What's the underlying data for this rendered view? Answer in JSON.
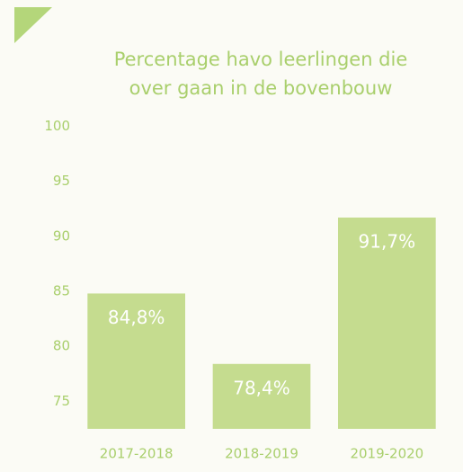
{
  "chart_data": {
    "type": "bar",
    "title": "Percentage havo leerlingen die over gaan in de bovenbouw",
    "categories": [
      "2017-2018",
      "2018-2019",
      "2019-2020"
    ],
    "values": [
      84.8,
      78.4,
      91.7
    ],
    "value_labels": [
      "84,8%",
      "78,4%",
      "91,7%"
    ],
    "color": "#c5dc8f",
    "ylim": [
      72.5,
      100
    ],
    "yticks": [
      75,
      80,
      85,
      90,
      95,
      100
    ],
    "grid": false
  }
}
